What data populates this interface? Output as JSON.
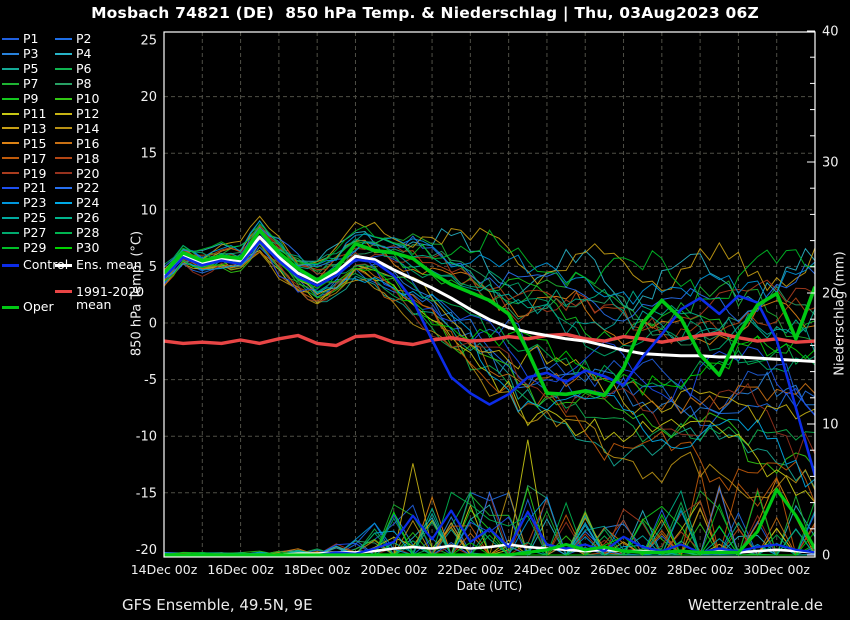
{
  "title": "Mosbach 74821 (DE)  850 hPa Temp. & Niederschlag | Thu, 03Aug2023 06Z",
  "footer": {
    "left": "GFS Ensemble, 49.5N, 9E",
    "right": "Wetterzentrale.de"
  },
  "axes": {
    "left": {
      "label": "850 hPa Temp. (°C)",
      "ticks": [
        25,
        20,
        15,
        10,
        5,
        0,
        -5,
        -10,
        -15,
        -20
      ],
      "grid_ticks": [
        20,
        15,
        10,
        5,
        0,
        -5,
        -10,
        -15
      ],
      "range": [
        -20.7,
        25.7
      ]
    },
    "right": {
      "label": "Niederschlag (mm)",
      "ticks": [
        40,
        30,
        20,
        10,
        0
      ],
      "range": [
        0,
        40
      ]
    },
    "x": {
      "label": "Date (UTC)",
      "start_day": 14,
      "end_day": 31,
      "tick_days": [
        14,
        16,
        18,
        20,
        22,
        24,
        26,
        28,
        30
      ],
      "tick_labels": [
        "14Dec 00z",
        "16Dec 00z",
        "18Dec 00z",
        "20Dec 00z",
        "22Dec 00z",
        "24Dec 00z",
        "26Dec 00z",
        "28Dec 00z",
        "30Dec 00z"
      ],
      "grid_step_days": 1
    }
  },
  "colors": {
    "background": "#000000",
    "frame": "#ffffff",
    "grid": "#4f4f46",
    "control": "#0c2ce8",
    "ens_mean": "#ffffff",
    "clim_mean": "#e84545",
    "oper": "#00c814"
  },
  "legend": {
    "members": [
      {
        "label": "P1",
        "color": "#2060e0"
      },
      {
        "label": "P2",
        "color": "#1e6ee6"
      },
      {
        "label": "P3",
        "color": "#2882dc"
      },
      {
        "label": "P4",
        "color": "#28b4c8"
      },
      {
        "label": "P5",
        "color": "#14aa96"
      },
      {
        "label": "P6",
        "color": "#0fb450"
      },
      {
        "label": "P7",
        "color": "#1eb432"
      },
      {
        "label": "P8",
        "color": "#28a064"
      },
      {
        "label": "P9",
        "color": "#14c81e"
      },
      {
        "label": "P10",
        "color": "#32c814"
      },
      {
        "label": "P11",
        "color": "#c8c814"
      },
      {
        "label": "P12",
        "color": "#c8b414"
      },
      {
        "label": "P13",
        "color": "#c8a014"
      },
      {
        "label": "P14",
        "color": "#b99114"
      },
      {
        "label": "P15",
        "color": "#dc8214"
      },
      {
        "label": "P16",
        "color": "#c87014"
      },
      {
        "label": "P17",
        "color": "#c05a0a"
      },
      {
        "label": "P18",
        "color": "#b44614"
      },
      {
        "label": "P19",
        "color": "#aa3c1e"
      },
      {
        "label": "P20",
        "color": "#96321e"
      },
      {
        "label": "P21",
        "color": "#1e50f0"
      },
      {
        "label": "P22",
        "color": "#2870f0"
      },
      {
        "label": "P23",
        "color": "#0096dc"
      },
      {
        "label": "P24",
        "color": "#00aae6"
      },
      {
        "label": "P25",
        "color": "#00aaa0"
      },
      {
        "label": "P26",
        "color": "#00b48c"
      },
      {
        "label": "P27",
        "color": "#00aa6e"
      },
      {
        "label": "P28",
        "color": "#00b450"
      },
      {
        "label": "P29",
        "color": "#00be28"
      },
      {
        "label": "P30",
        "color": "#00d200"
      }
    ],
    "control_label": "Control",
    "ens_mean_label": "Ens. mean",
    "clim_mean_label": "1991-2020 mean",
    "oper_label": "Oper"
  },
  "chart_data": {
    "type": "line",
    "x_unit": "day of December, 00z/12z steps",
    "temp_axis_range": [
      -20,
      25
    ],
    "precip_axis_range": [
      0,
      40
    ],
    "grid": true,
    "times": [
      14,
      14.5,
      15,
      15.5,
      16,
      16.5,
      17,
      17.5,
      18,
      18.5,
      19,
      19.5,
      20,
      20.5,
      21,
      21.5,
      22,
      22.5,
      23,
      23.5,
      24,
      24.5,
      25,
      25.5,
      26,
      26.5,
      27,
      27.5,
      28,
      28.5,
      29,
      29.5,
      30,
      30.5,
      31
    ],
    "series": [
      {
        "name": "Ens. mean",
        "role": "ens_mean",
        "width": 3,
        "temp": [
          4.1,
          6.0,
          5.3,
          5.7,
          5.5,
          7.6,
          5.8,
          4.4,
          3.6,
          4.5,
          5.9,
          5.6,
          4.7,
          3.9,
          3.1,
          2.2,
          1.2,
          0.3,
          -0.4,
          -0.8,
          -1.1,
          -1.4,
          -1.6,
          -2.0,
          -2.4,
          -2.7,
          -2.8,
          -2.9,
          -2.9,
          -3.0,
          -3.0,
          -3.1,
          -3.2,
          -3.3,
          -3.4
        ],
        "precip": [
          0,
          0,
          0,
          0,
          0,
          0,
          0,
          0.1,
          0.1,
          0.2,
          0.2,
          0.3,
          0.5,
          0.6,
          0.5,
          0.7,
          0.5,
          0.6,
          0.8,
          0.6,
          0.5,
          0.4,
          0.3,
          0.4,
          0.3,
          0.3,
          0.2,
          0.3,
          0.2,
          0.3,
          0.2,
          0.3,
          0.4,
          0.3,
          0.2
        ]
      },
      {
        "name": "Control",
        "role": "control",
        "width": 2.6,
        "temp": [
          4.0,
          5.8,
          5.1,
          5.5,
          5.2,
          7.2,
          5.5,
          4.1,
          3.3,
          4.2,
          5.6,
          5.4,
          4.2,
          2.0,
          -1.5,
          -4.8,
          -6.2,
          -7.2,
          -6.3,
          -4.8,
          -4.4,
          -5.2,
          -4.2,
          -4.7,
          -5.5,
          -3.0,
          -1.0,
          1.2,
          2.2,
          0.8,
          2.4,
          1.8,
          -1.5,
          -7.5,
          -13.5
        ],
        "precip": [
          0,
          0,
          0,
          0,
          0,
          0,
          0,
          0,
          0,
          0.2,
          0.1,
          0.5,
          1.0,
          3.0,
          1.2,
          3.4,
          1.0,
          2.0,
          0.6,
          3.3,
          0.8,
          0.5,
          0.8,
          0.3,
          1.4,
          0.6,
          0.3,
          0.8,
          0.2,
          0.5,
          0.3,
          0.6,
          0.8,
          0.4,
          0.2
        ]
      },
      {
        "name": "Oper",
        "role": "oper",
        "width": 3.6,
        "temp": [
          4.4,
          6.2,
          5.5,
          5.9,
          5.7,
          8.2,
          6.2,
          4.8,
          3.8,
          4.8,
          7.0,
          6.4,
          6.2,
          5.7,
          4.4,
          3.4,
          2.7,
          2.0,
          0.8,
          -2.5,
          -6.2,
          -6.3,
          -6.0,
          -6.4,
          -4.0,
          0.0,
          2.0,
          0.4,
          -2.8,
          -4.6,
          -1.0,
          1.6,
          2.6,
          -1.4,
          3.2
        ],
        "precip": [
          0,
          0,
          0,
          0,
          0,
          0,
          0,
          0,
          0,
          0,
          0,
          0,
          0,
          0,
          0,
          0,
          0,
          0,
          0,
          0.2,
          0.4,
          0.8,
          0.4,
          0.6,
          0.3,
          0.2,
          0.2,
          0.3,
          0.2,
          0.2,
          0.2,
          1.8,
          5.0,
          3.0,
          0.5
        ]
      },
      {
        "name": "1991-2020 mean",
        "role": "clim_mean",
        "width": 3.4,
        "temp": [
          -1.6,
          -1.8,
          -1.7,
          -1.8,
          -1.5,
          -1.8,
          -1.4,
          -1.1,
          -1.8,
          -2.0,
          -1.2,
          -1.1,
          -1.7,
          -1.9,
          -1.5,
          -1.3,
          -1.6,
          -1.5,
          -1.2,
          -1.4,
          -1.1,
          -1.0,
          -1.4,
          -1.6,
          -1.2,
          -1.4,
          -1.7,
          -1.4,
          -1.1,
          -0.9,
          -1.3,
          -1.6,
          -1.4,
          -1.7,
          -1.6
        ]
      }
    ],
    "members": {
      "count": 30,
      "seed": 20231203,
      "wiggle": 1.0,
      "spread": [
        0.5,
        0.7,
        0.8,
        0.9,
        1.0,
        1.2,
        1.5,
        1.6,
        1.8,
        1.8,
        1.9,
        2.2,
        2.8,
        3.5,
        4.2,
        5.0,
        5.5,
        6.0,
        6.0,
        6.0,
        6.0,
        6.2,
        6.5,
        6.5,
        6.5,
        6.8,
        7.0,
        7.0,
        7.2,
        7.5,
        7.5,
        7.8,
        8.0,
        8.2,
        8.5
      ],
      "precip_env": [
        0.2,
        0.2,
        0.2,
        0.2,
        0.2,
        0.3,
        0.3,
        0.5,
        0.5,
        1.0,
        1.5,
        2.5,
        4.0,
        4.5,
        4.5,
        5.0,
        5.0,
        5.0,
        5.0,
        5.5,
        4.5,
        4.0,
        3.5,
        3.0,
        3.0,
        3.5,
        4.0,
        5.0,
        5.0,
        5.5,
        5.5,
        6.0,
        6.0,
        5.5,
        5.0
      ],
      "forced_precip_spikes": [
        {
          "member": 10,
          "day": 23.5,
          "mm": 8.8
        },
        {
          "member": 11,
          "day": 20.5,
          "mm": 7.0
        },
        {
          "member": 16,
          "day": 28.0,
          "mm": 6.5
        },
        {
          "member": 18,
          "day": 26.0,
          "mm": 3.5
        }
      ]
    }
  }
}
